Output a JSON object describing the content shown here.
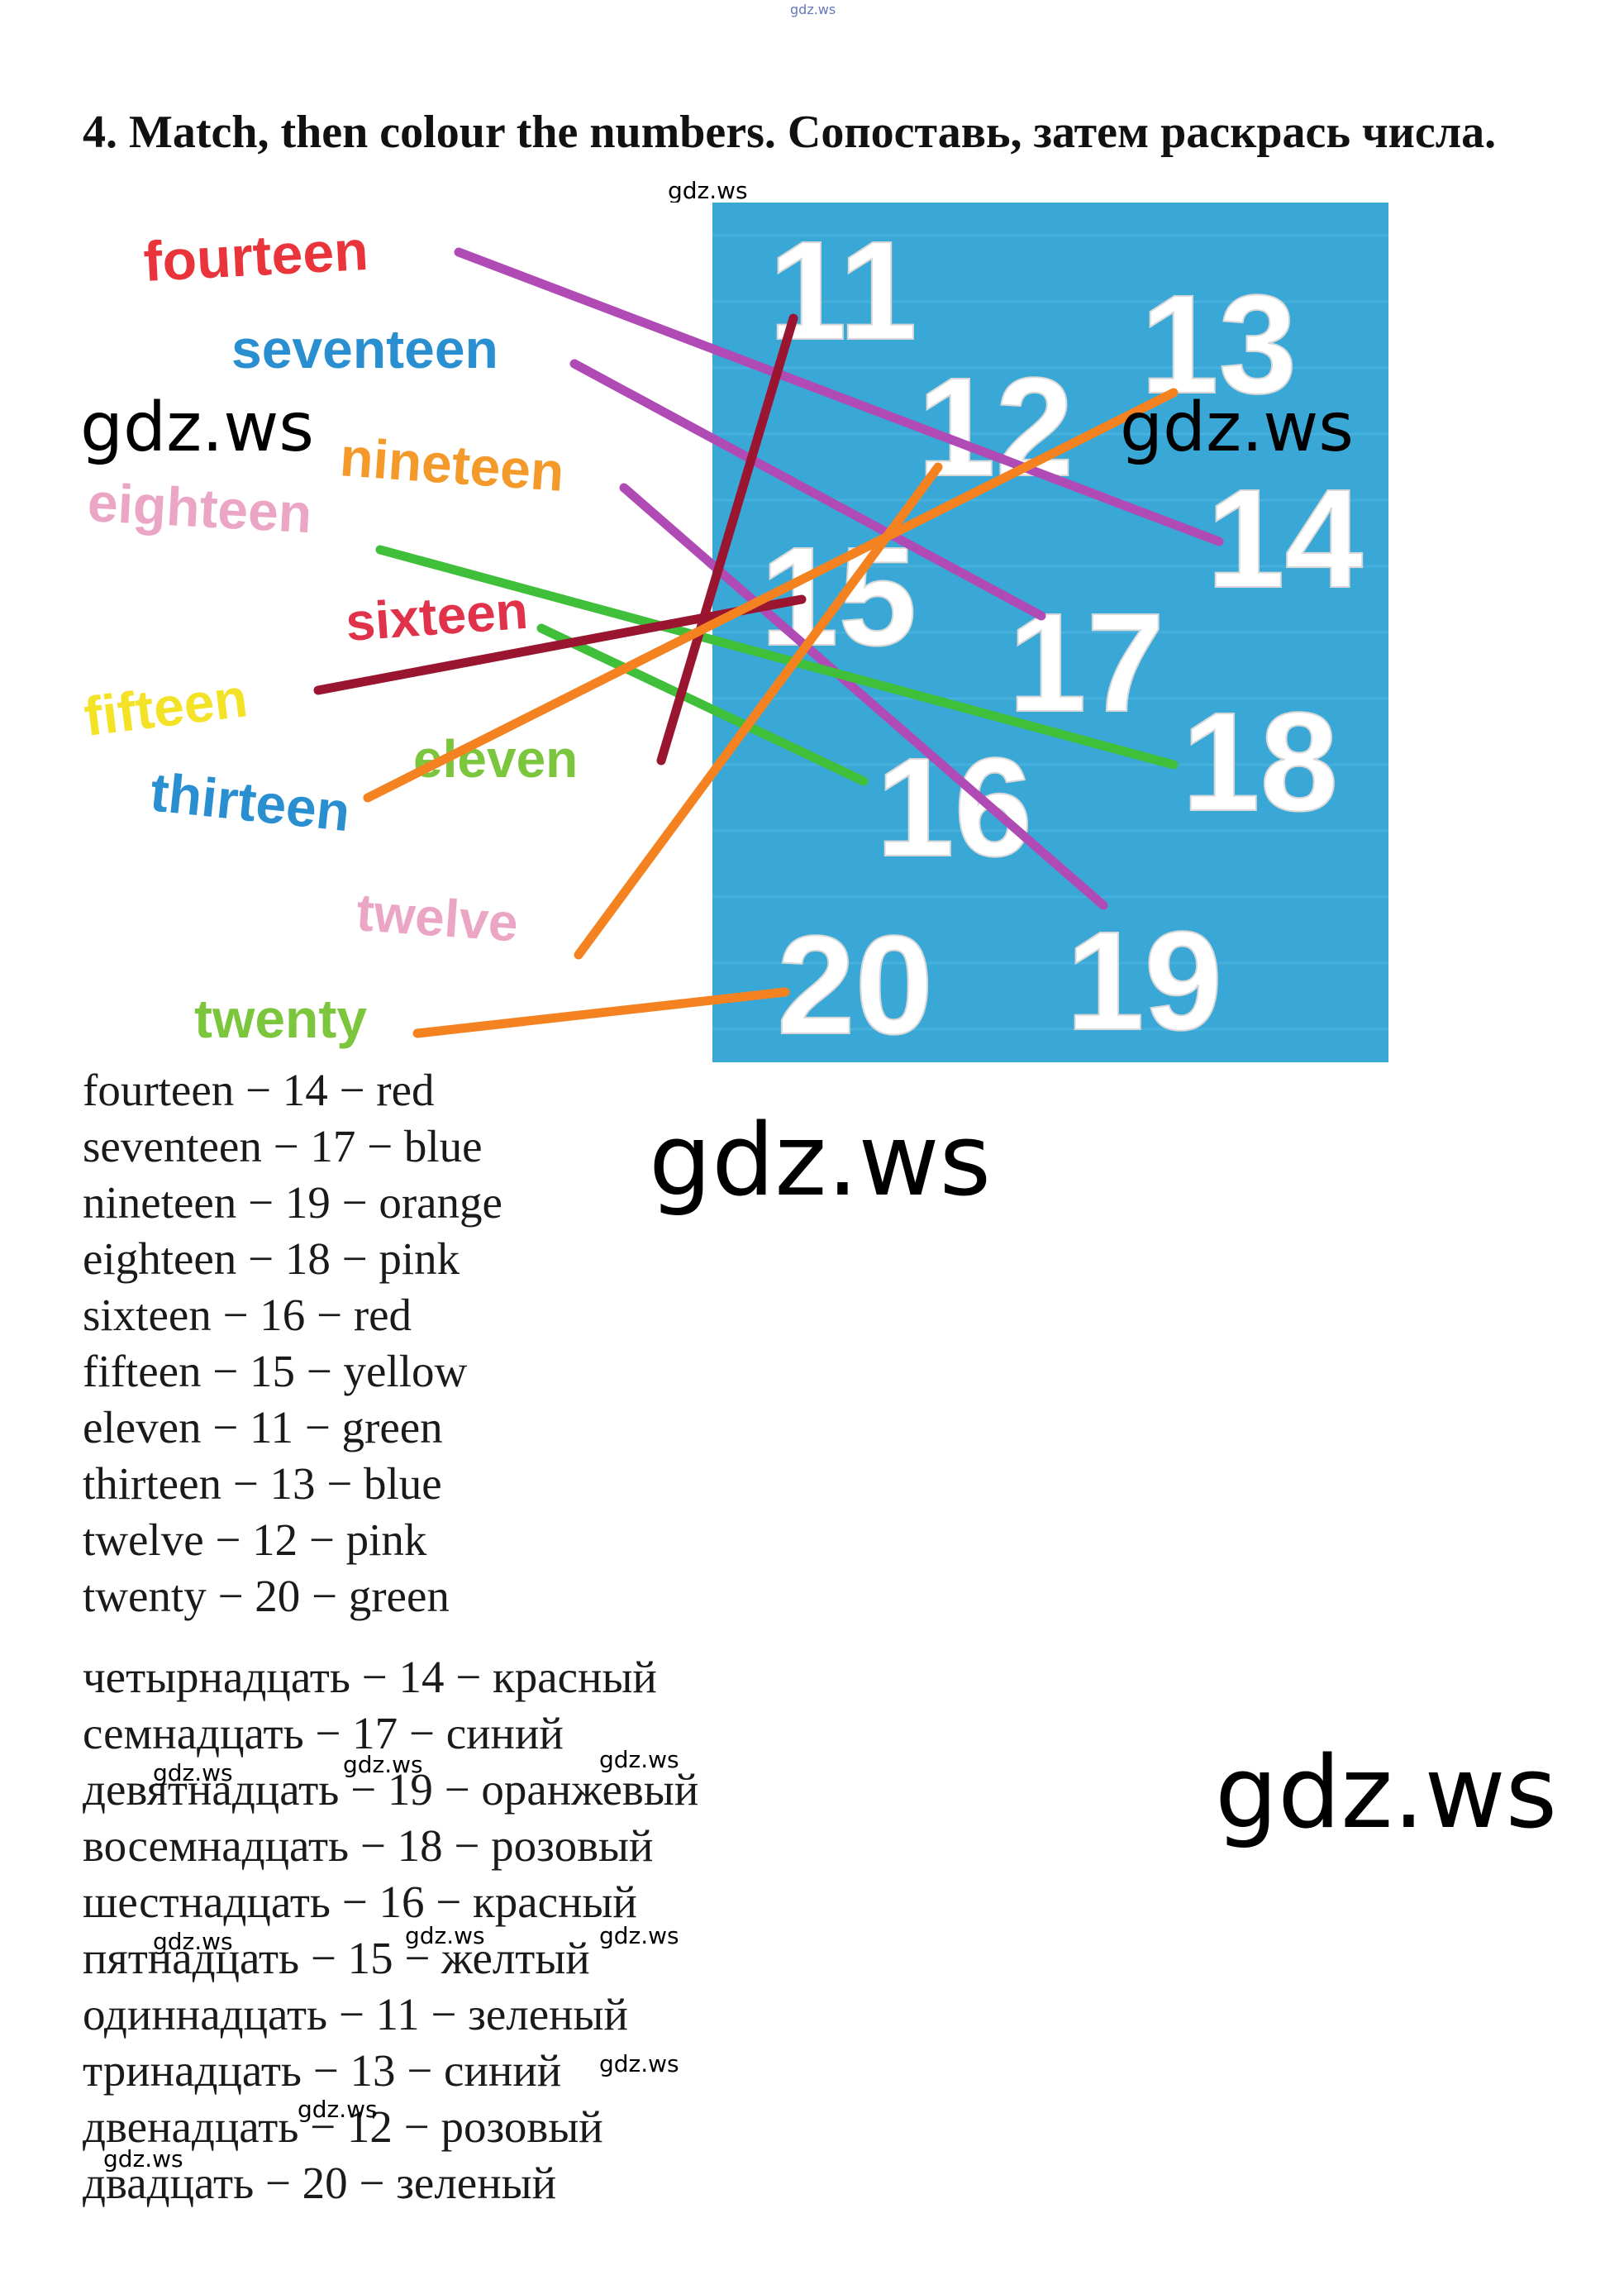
{
  "watermarks": {
    "top": "gdz.ws",
    "under_title": "gdz.ws",
    "left_mid": "gdz.ws",
    "right_mid": "gdz.ws",
    "center": "gdz.ws",
    "right_large": "gdz.ws",
    "small": "gdz.ws"
  },
  "exercise": {
    "title": "4. Match, then colour the numbers.  Сопоставь, затем раскрась числа."
  },
  "picture": {
    "background_left": "#ffffff",
    "background_right": "#39a8d6",
    "words": [
      {
        "text": "fourteen",
        "color": "#e8343a"
      },
      {
        "text": "seventeen",
        "color": "#2a8fd0"
      },
      {
        "text": "nineteen",
        "color": "#f39a2b"
      },
      {
        "text": "eighteen",
        "color": "#eba6c6"
      },
      {
        "text": "sixteen",
        "color": "#e0324a"
      },
      {
        "text": "fifteen",
        "color": "#f4e227"
      },
      {
        "text": "eleven",
        "color": "#7cc63d"
      },
      {
        "text": "thirteen",
        "color": "#2a8fd0"
      },
      {
        "text": "twelve",
        "color": "#eba6c6"
      },
      {
        "text": "twenty",
        "color": "#7cc63d"
      }
    ],
    "numbers": [
      "11",
      "12",
      "13",
      "14",
      "15",
      "16",
      "17",
      "18",
      "19",
      "20"
    ],
    "line_colors": {
      "purple": "#b04bb5",
      "green": "#3fbf3a",
      "orange": "#f58220",
      "darkred": "#9a1530"
    }
  },
  "answers_en": [
    "fourteen − 14 − red",
    "seventeen − 17 − blue",
    "nineteen − 19 − orange",
    "eighteen − 18 − pink",
    "sixteen − 16 − red",
    "fifteen − 15 − yellow",
    "eleven − 11 − green",
    "thirteen − 13 − blue",
    "twelve − 12 − pink",
    "twenty − 20 − green"
  ],
  "answers_ru": [
    "четырнадцать − 14 − красный",
    "семнадцать − 17 − синий",
    "девятнадцать − 19 − оранжевый",
    "восемнадцать − 18 − розовый",
    "шестнадцать − 16 − красный",
    "пятнадцать − 15 − желтый",
    "одиннадцать − 11 − зеленый",
    "тринадцать − 13 − синий",
    "двенадцать − 12 − розовый",
    "двадцать − 20 − зеленый"
  ]
}
